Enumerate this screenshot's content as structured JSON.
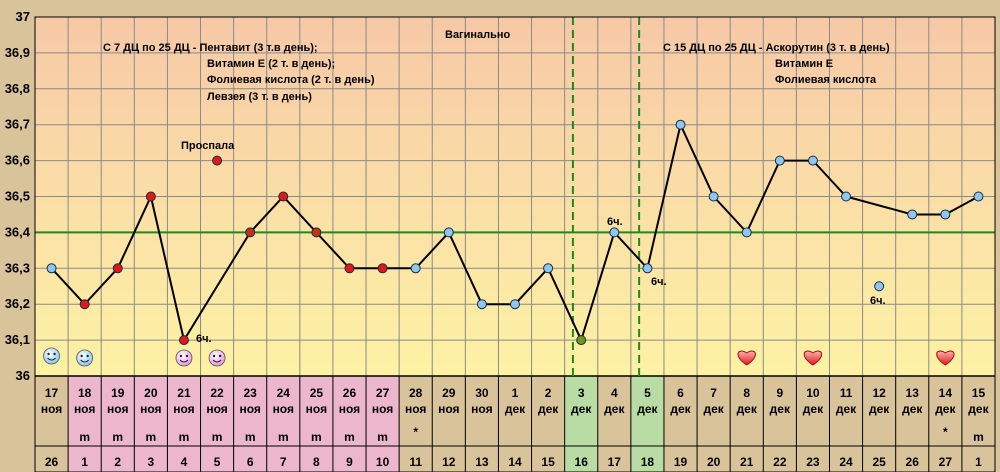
{
  "chart_data": {
    "type": "line",
    "title": "",
    "xlabel": "",
    "ylabel": "",
    "ylim": [
      36.0,
      37.0
    ],
    "yticks": [
      "37",
      "36,9",
      "36,8",
      "36,7",
      "36,6",
      "36,5",
      "36,4",
      "36,3",
      "36,2",
      "36,1",
      "36"
    ],
    "grid": true,
    "coverline": 36.4,
    "dates": [
      [
        "17",
        "ноя"
      ],
      [
        "18",
        "ноя"
      ],
      [
        "19",
        "ноя"
      ],
      [
        "20",
        "ноя"
      ],
      [
        "21",
        "ноя"
      ],
      [
        "22",
        "ноя"
      ],
      [
        "23",
        "ноя"
      ],
      [
        "24",
        "ноя"
      ],
      [
        "25",
        "ноя"
      ],
      [
        "26",
        "ноя"
      ],
      [
        "27",
        "ноя"
      ],
      [
        "28",
        "ноя"
      ],
      [
        "29",
        "ноя"
      ],
      [
        "30",
        "ноя"
      ],
      [
        "1",
        "дек"
      ],
      [
        "2",
        "дек"
      ],
      [
        "3",
        "дек"
      ],
      [
        "4",
        "дек"
      ],
      [
        "5",
        "дек"
      ],
      [
        "6",
        "дек"
      ],
      [
        "7",
        "дек"
      ],
      [
        "8",
        "дек"
      ],
      [
        "9",
        "дек"
      ],
      [
        "10",
        "дек"
      ],
      [
        "11",
        "дек"
      ],
      [
        "12",
        "дек"
      ],
      [
        "13",
        "дек"
      ],
      [
        "14",
        "дек"
      ],
      [
        "15",
        "дек"
      ]
    ],
    "marks": [
      "",
      "m",
      "m",
      "m",
      "m",
      "m",
      "m",
      "m",
      "m",
      "m",
      "m",
      "*",
      "",
      "",
      "",
      "",
      "",
      "",
      "",
      "",
      "",
      "",
      "",
      "",
      "",
      "",
      "",
      "*",
      "m"
    ],
    "cycle_days": [
      "26",
      "1",
      "2",
      "3",
      "4",
      "5",
      "6",
      "7",
      "8",
      "9",
      "10",
      "11",
      "12",
      "13",
      "14",
      "15",
      "16",
      "17",
      "18",
      "19",
      "20",
      "21",
      "22",
      "23",
      "24",
      "25",
      "26",
      "27",
      "1"
    ],
    "values": [
      36.3,
      36.2,
      36.3,
      36.5,
      36.1,
      null,
      36.4,
      36.5,
      36.4,
      36.3,
      36.3,
      36.3,
      36.4,
      36.2,
      36.2,
      36.3,
      36.1,
      36.4,
      36.3,
      36.7,
      36.5,
      36.4,
      36.6,
      36.6,
      36.5,
      null,
      36.45,
      36.45,
      36.5
    ],
    "point_colors": [
      "#8ec8ee",
      "#e01818",
      "#e01818",
      "#e01818",
      "#e01818",
      null,
      "#c83010",
      "#e01818",
      "#c83010",
      "#e01818",
      "#e01818",
      "#8ec8ee",
      "#8ec8ee",
      "#8ec8ee",
      "#8ec8ee",
      "#8ec8ee",
      "#6a9a18",
      "#8ec8ee",
      "#8ec8ee",
      "#8ec8ee",
      "#8ec8ee",
      "#8ec8ee",
      "#8ec8ee",
      "#8ec8ee",
      "#8ec8ee",
      null,
      "#8ec8ee",
      "#8ec8ee",
      "#8ec8ee"
    ],
    "extra_points": [
      {
        "day_index": 5,
        "value": 36.6,
        "color": "#e01818"
      },
      {
        "day_index": 25,
        "value": 36.25,
        "color": "#8ec8ee"
      }
    ],
    "vertical_markers": [
      16,
      18
    ],
    "highlight": {
      "menstruation_days": [
        1,
        2,
        3,
        4,
        5,
        6,
        7,
        8,
        9,
        10
      ],
      "marker_days": [
        16,
        18
      ]
    },
    "icons": [
      {
        "day_index": 0,
        "type": "smiley-blue"
      },
      {
        "day_index": 1,
        "type": "smiley-blue"
      },
      {
        "day_index": 4,
        "type": "smiley-pink"
      },
      {
        "day_index": 5,
        "type": "smiley-pink"
      },
      {
        "day_index": 21,
        "type": "heart"
      },
      {
        "day_index": 23,
        "type": "heart"
      },
      {
        "day_index": 27,
        "type": "heart"
      }
    ],
    "annotations": [
      {
        "text": "С 7 ДЦ по 25 ДЦ  - Пентавит (3 т.в день);"
      },
      {
        "text": "Витамин Е (2 т. в день);"
      },
      {
        "text": "Фолиевая кислота (2 т. в день)"
      },
      {
        "text": "Левзея (3 т. в день)"
      },
      {
        "text": "Вагинально"
      },
      {
        "text": "Проспала"
      },
      {
        "text": "С 15 ДЦ по 25 ДЦ - Аскорутин (3 т. в день)"
      },
      {
        "text": "Витамин Е"
      },
      {
        "text": "Фолиевая кислота"
      },
      {
        "text": "6ч."
      },
      {
        "text": "6ч."
      },
      {
        "text": "6ч."
      },
      {
        "text": "6ч."
      }
    ]
  }
}
